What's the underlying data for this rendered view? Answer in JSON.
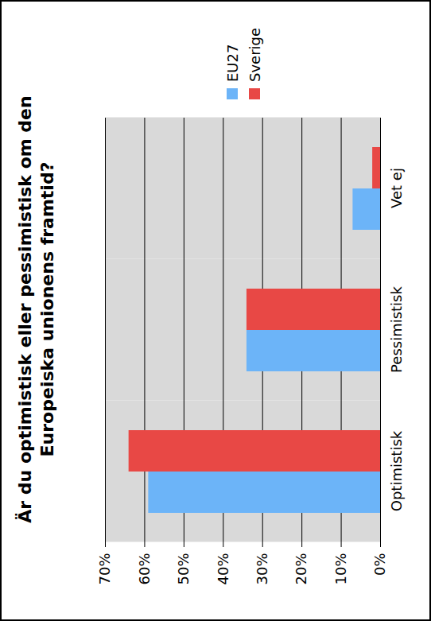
{
  "chart_data": {
    "type": "bar",
    "title": "Är du optimistisk eller pessimistisk om den Europeiska unionens framtid?",
    "categories": [
      "Optimistisk",
      "Pessimistisk",
      "Vet ej"
    ],
    "series": [
      {
        "name": "EU27",
        "color": "#6cb4f8",
        "values": [
          59,
          34,
          7
        ]
      },
      {
        "name": "Sverige",
        "color": "#e84845",
        "values": [
          64,
          34,
          2
        ]
      }
    ],
    "ylim": [
      0,
      70
    ],
    "yticks": [
      {
        "value": 0,
        "label": "0%"
      },
      {
        "value": 10,
        "label": "10%"
      },
      {
        "value": 20,
        "label": "20%"
      },
      {
        "value": 30,
        "label": "30%"
      },
      {
        "value": 40,
        "label": "40%"
      },
      {
        "value": 50,
        "label": "50%"
      },
      {
        "value": 60,
        "label": "60%"
      },
      {
        "value": 70,
        "label": "70%"
      }
    ],
    "grid": true,
    "legend": "right"
  }
}
